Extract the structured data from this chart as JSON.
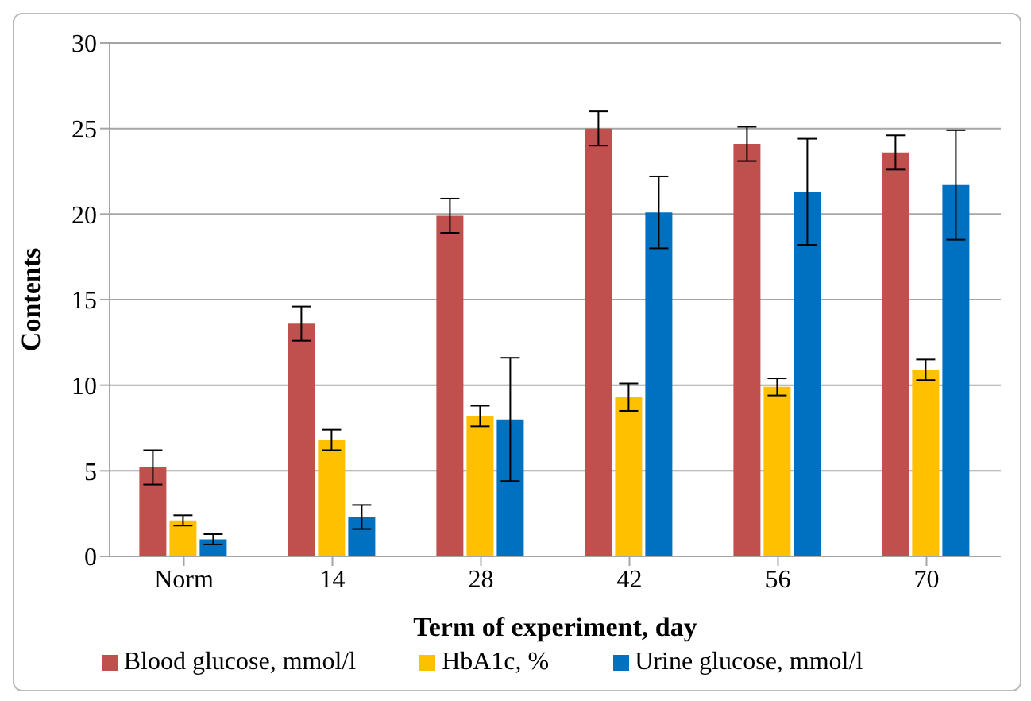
{
  "chart_data": {
    "type": "bar",
    "xlabel": "Term of experiment, day",
    "ylabel": "Contents",
    "categories": [
      "Norm",
      "14",
      "28",
      "42",
      "56",
      "70"
    ],
    "series": [
      {
        "name": "Blood glucose, mmol/l",
        "color": "#c0504d",
        "values": [
          5.2,
          13.6,
          19.9,
          25.0,
          24.1,
          23.6
        ],
        "errors": [
          1.0,
          1.0,
          1.0,
          1.0,
          1.0,
          1.0
        ]
      },
      {
        "name": "HbA1c, %",
        "color": "#ffc000",
        "values": [
          2.1,
          6.8,
          8.2,
          9.3,
          9.9,
          10.9
        ],
        "errors": [
          0.3,
          0.6,
          0.6,
          0.8,
          0.5,
          0.6
        ]
      },
      {
        "name": "Urine glucose, mmol/l",
        "color": "#0070c0",
        "values": [
          1.0,
          2.3,
          8.0,
          20.1,
          21.3,
          21.7
        ],
        "errors": [
          0.3,
          0.7,
          3.6,
          2.1,
          3.1,
          3.2
        ]
      }
    ],
    "ylim": [
      0,
      30
    ],
    "yticks": [
      0,
      5,
      10,
      15,
      20,
      25,
      30
    ],
    "grid": "y",
    "legend": "bottom"
  }
}
